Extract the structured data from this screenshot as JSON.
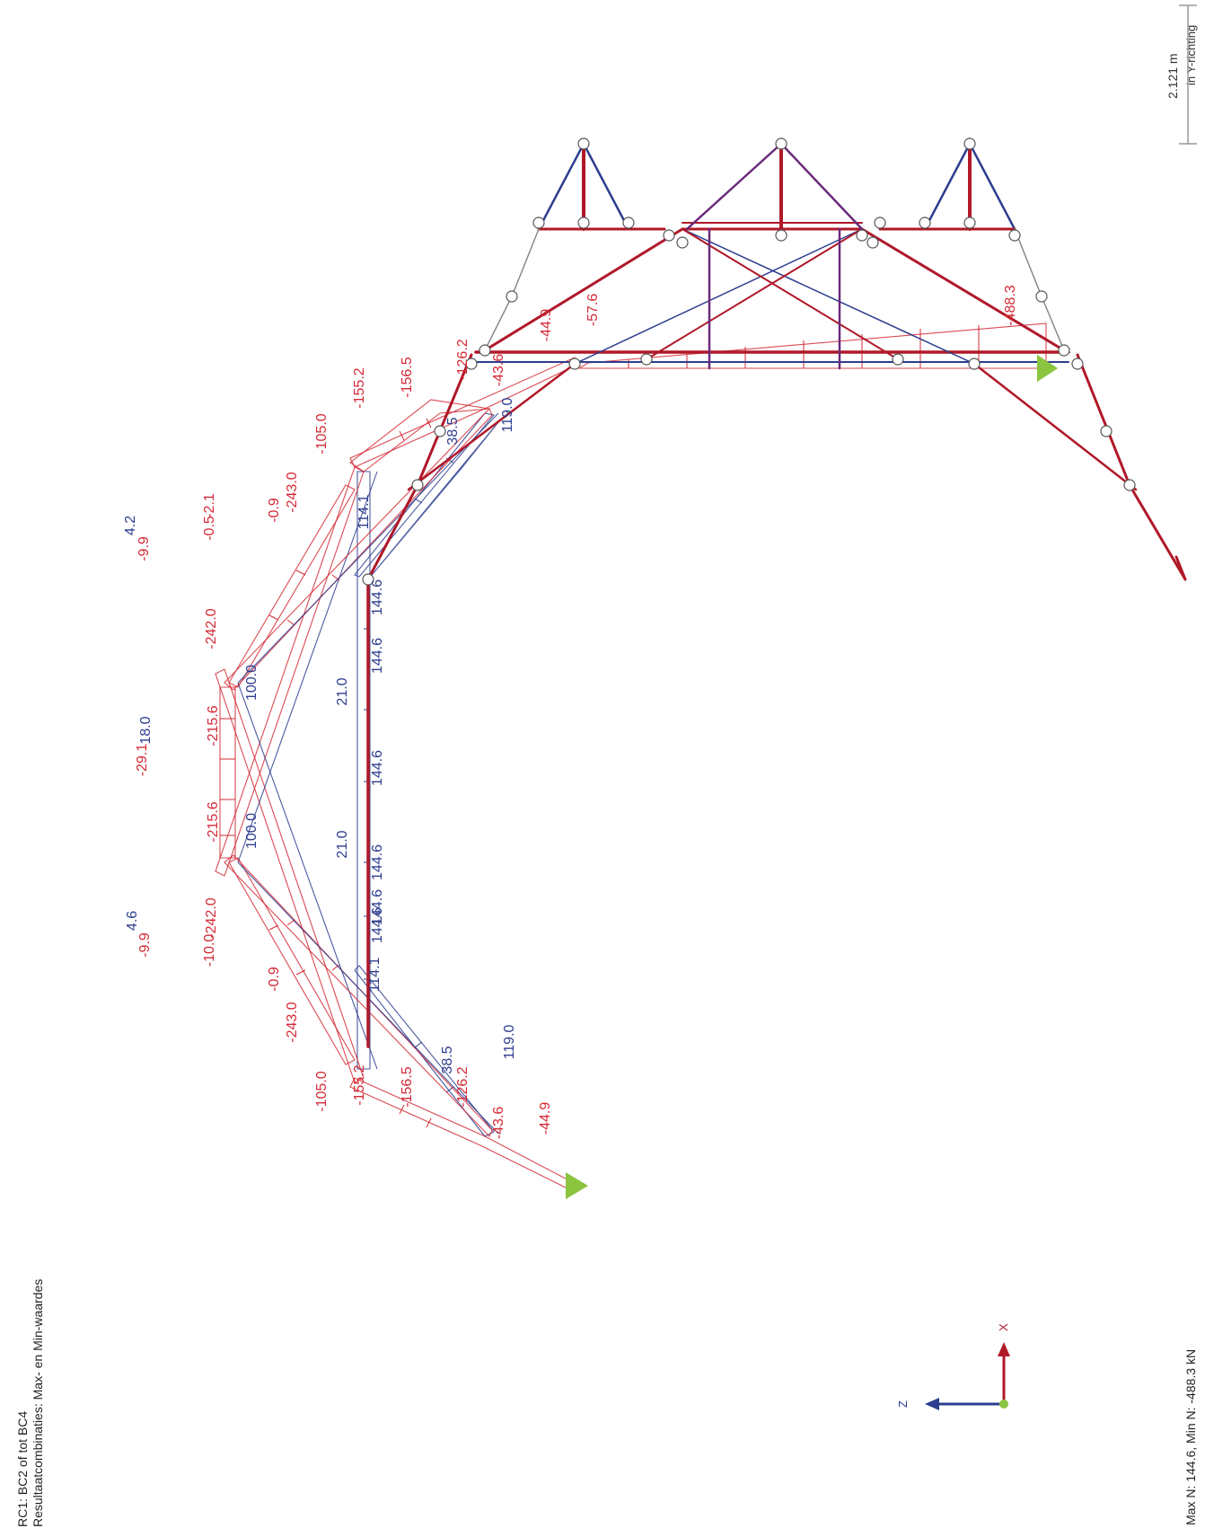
{
  "header": {
    "line1": "RC1: BC2 of tot BC4",
    "line2": "Resultaatcombinaties: Max- en Min-waardes"
  },
  "direction": "in Y-richting",
  "scale_label": "2.121 m",
  "footer": "Max N: 144.6, Min N: -488.3 kN",
  "axes": {
    "z_label": "Z",
    "x_label": "X"
  },
  "colors": {
    "negative": "#d42a35",
    "positive": "#2d3d8f",
    "structure": "#b01828",
    "purple": "#6a2a7a",
    "support": "#8bc53f"
  },
  "labels": [
    {
      "text": "-488.3",
      "color": "negative"
    },
    {
      "text": "-57.6",
      "color": "negative"
    },
    {
      "text": "-44.9",
      "color": "negative"
    },
    {
      "text": "-43.6",
      "color": "negative"
    },
    {
      "text": "-126.2",
      "color": "negative"
    },
    {
      "text": "-156.5",
      "color": "negative"
    },
    {
      "text": "-155.2",
      "color": "negative"
    },
    {
      "text": "-105.0",
      "color": "negative"
    },
    {
      "text": "-243.0",
      "color": "negative"
    },
    {
      "text": "-0.9",
      "color": "negative"
    },
    {
      "text": "-0.5",
      "color": "negative"
    },
    {
      "text": "-2.1",
      "color": "negative"
    },
    {
      "text": "-242.0",
      "color": "negative"
    },
    {
      "text": "-9.9",
      "color": "negative"
    },
    {
      "text": "4.2",
      "color": "positive"
    },
    {
      "text": "-215.6",
      "color": "negative"
    },
    {
      "text": "18.0",
      "color": "positive"
    },
    {
      "text": "-29.1",
      "color": "negative"
    },
    {
      "text": "-215.6",
      "color": "negative"
    },
    {
      "text": "-242.0",
      "color": "negative"
    },
    {
      "text": "4.6",
      "color": "positive"
    },
    {
      "text": "-9.9",
      "color": "negative"
    },
    {
      "text": "-10.0",
      "color": "negative"
    },
    {
      "text": "-0.9",
      "color": "negative"
    },
    {
      "text": "-243.0",
      "color": "negative"
    },
    {
      "text": "-105.0",
      "color": "negative"
    },
    {
      "text": "-155.2",
      "color": "negative"
    },
    {
      "text": "-156.5",
      "color": "negative"
    },
    {
      "text": "-126.2",
      "color": "negative"
    },
    {
      "text": "-43.6",
      "color": "negative"
    },
    {
      "text": "-44.9",
      "color": "negative"
    },
    {
      "text": "119.0",
      "color": "positive"
    },
    {
      "text": "38.5",
      "color": "positive"
    },
    {
      "text": "114.1",
      "color": "positive"
    },
    {
      "text": "144.6",
      "color": "positive"
    },
    {
      "text": "144.6",
      "color": "positive"
    },
    {
      "text": "21.0",
      "color": "positive"
    },
    {
      "text": "144.6",
      "color": "positive"
    },
    {
      "text": "144.6",
      "color": "positive"
    },
    {
      "text": "21.0",
      "color": "positive"
    },
    {
      "text": "144.6",
      "color": "positive"
    },
    {
      "text": "144.6",
      "color": "positive"
    },
    {
      "text": "114.1",
      "color": "positive"
    },
    {
      "text": "38.5",
      "color": "positive"
    },
    {
      "text": "119.0",
      "color": "positive"
    },
    {
      "text": "100.0",
      "color": "positive"
    },
    {
      "text": "100.0",
      "color": "positive"
    }
  ]
}
